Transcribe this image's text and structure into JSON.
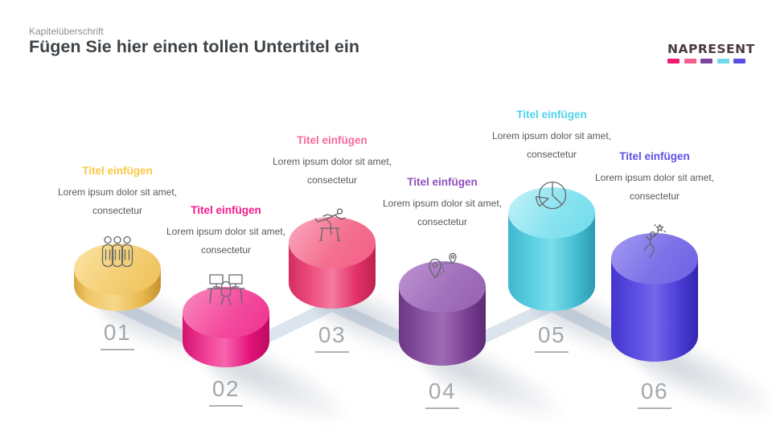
{
  "header": {
    "eyebrow": "Kapitelüberschrift",
    "title": "Fügen Sie hier einen tollen Untertitel ein"
  },
  "logo": {
    "text": "NAPRESENT",
    "dash_colors": [
      "#EE1A70",
      "#F45F8C",
      "#7B44A2",
      "#6FD8EC",
      "#5B4FE1"
    ]
  },
  "connector_color": "#D8E2EC",
  "number_color": "#A4A8AC",
  "steps": [
    {
      "number": "01",
      "title": "Titel einfügen",
      "body": "Lorem ipsum dolor sit amet, consectetur",
      "icon": "team-icon",
      "accent": "#FBC844",
      "cylinder_color": "#F2C868"
    },
    {
      "number": "02",
      "title": "Titel einfügen",
      "body": "Lorem ipsum dolor sit amet, consectetur",
      "icon": "workspace-icon",
      "accent": "#F5198C",
      "cylinder_color": "#EE2D8D"
    },
    {
      "number": "03",
      "title": "Titel einfügen",
      "body": "Lorem ipsum dolor sit amet, consectetur",
      "icon": "hurdle-runner-icon",
      "accent": "#F7699E",
      "cylinder_color": "#EE4A7D"
    },
    {
      "number": "04",
      "title": "Titel einfügen",
      "body": "Lorem ipsum dolor sit amet, consectetur",
      "icon": "route-location-icon",
      "accent": "#8F4FBE",
      "cylinder_color": "#86499F"
    },
    {
      "number": "05",
      "title": "Titel einfügen",
      "body": "Lorem ipsum dolor sit amet, consectetur",
      "icon": "pie-chart-icon",
      "accent": "#4ED4EC",
      "cylinder_color": "#55CBDE"
    },
    {
      "number": "06",
      "title": "Titel einfügen",
      "body": "Lorem ipsum dolor sit amet, consectetur",
      "icon": "goal-achievement-icon",
      "accent": "#5B50E5",
      "cylinder_color": "#5A4CE0"
    }
  ]
}
